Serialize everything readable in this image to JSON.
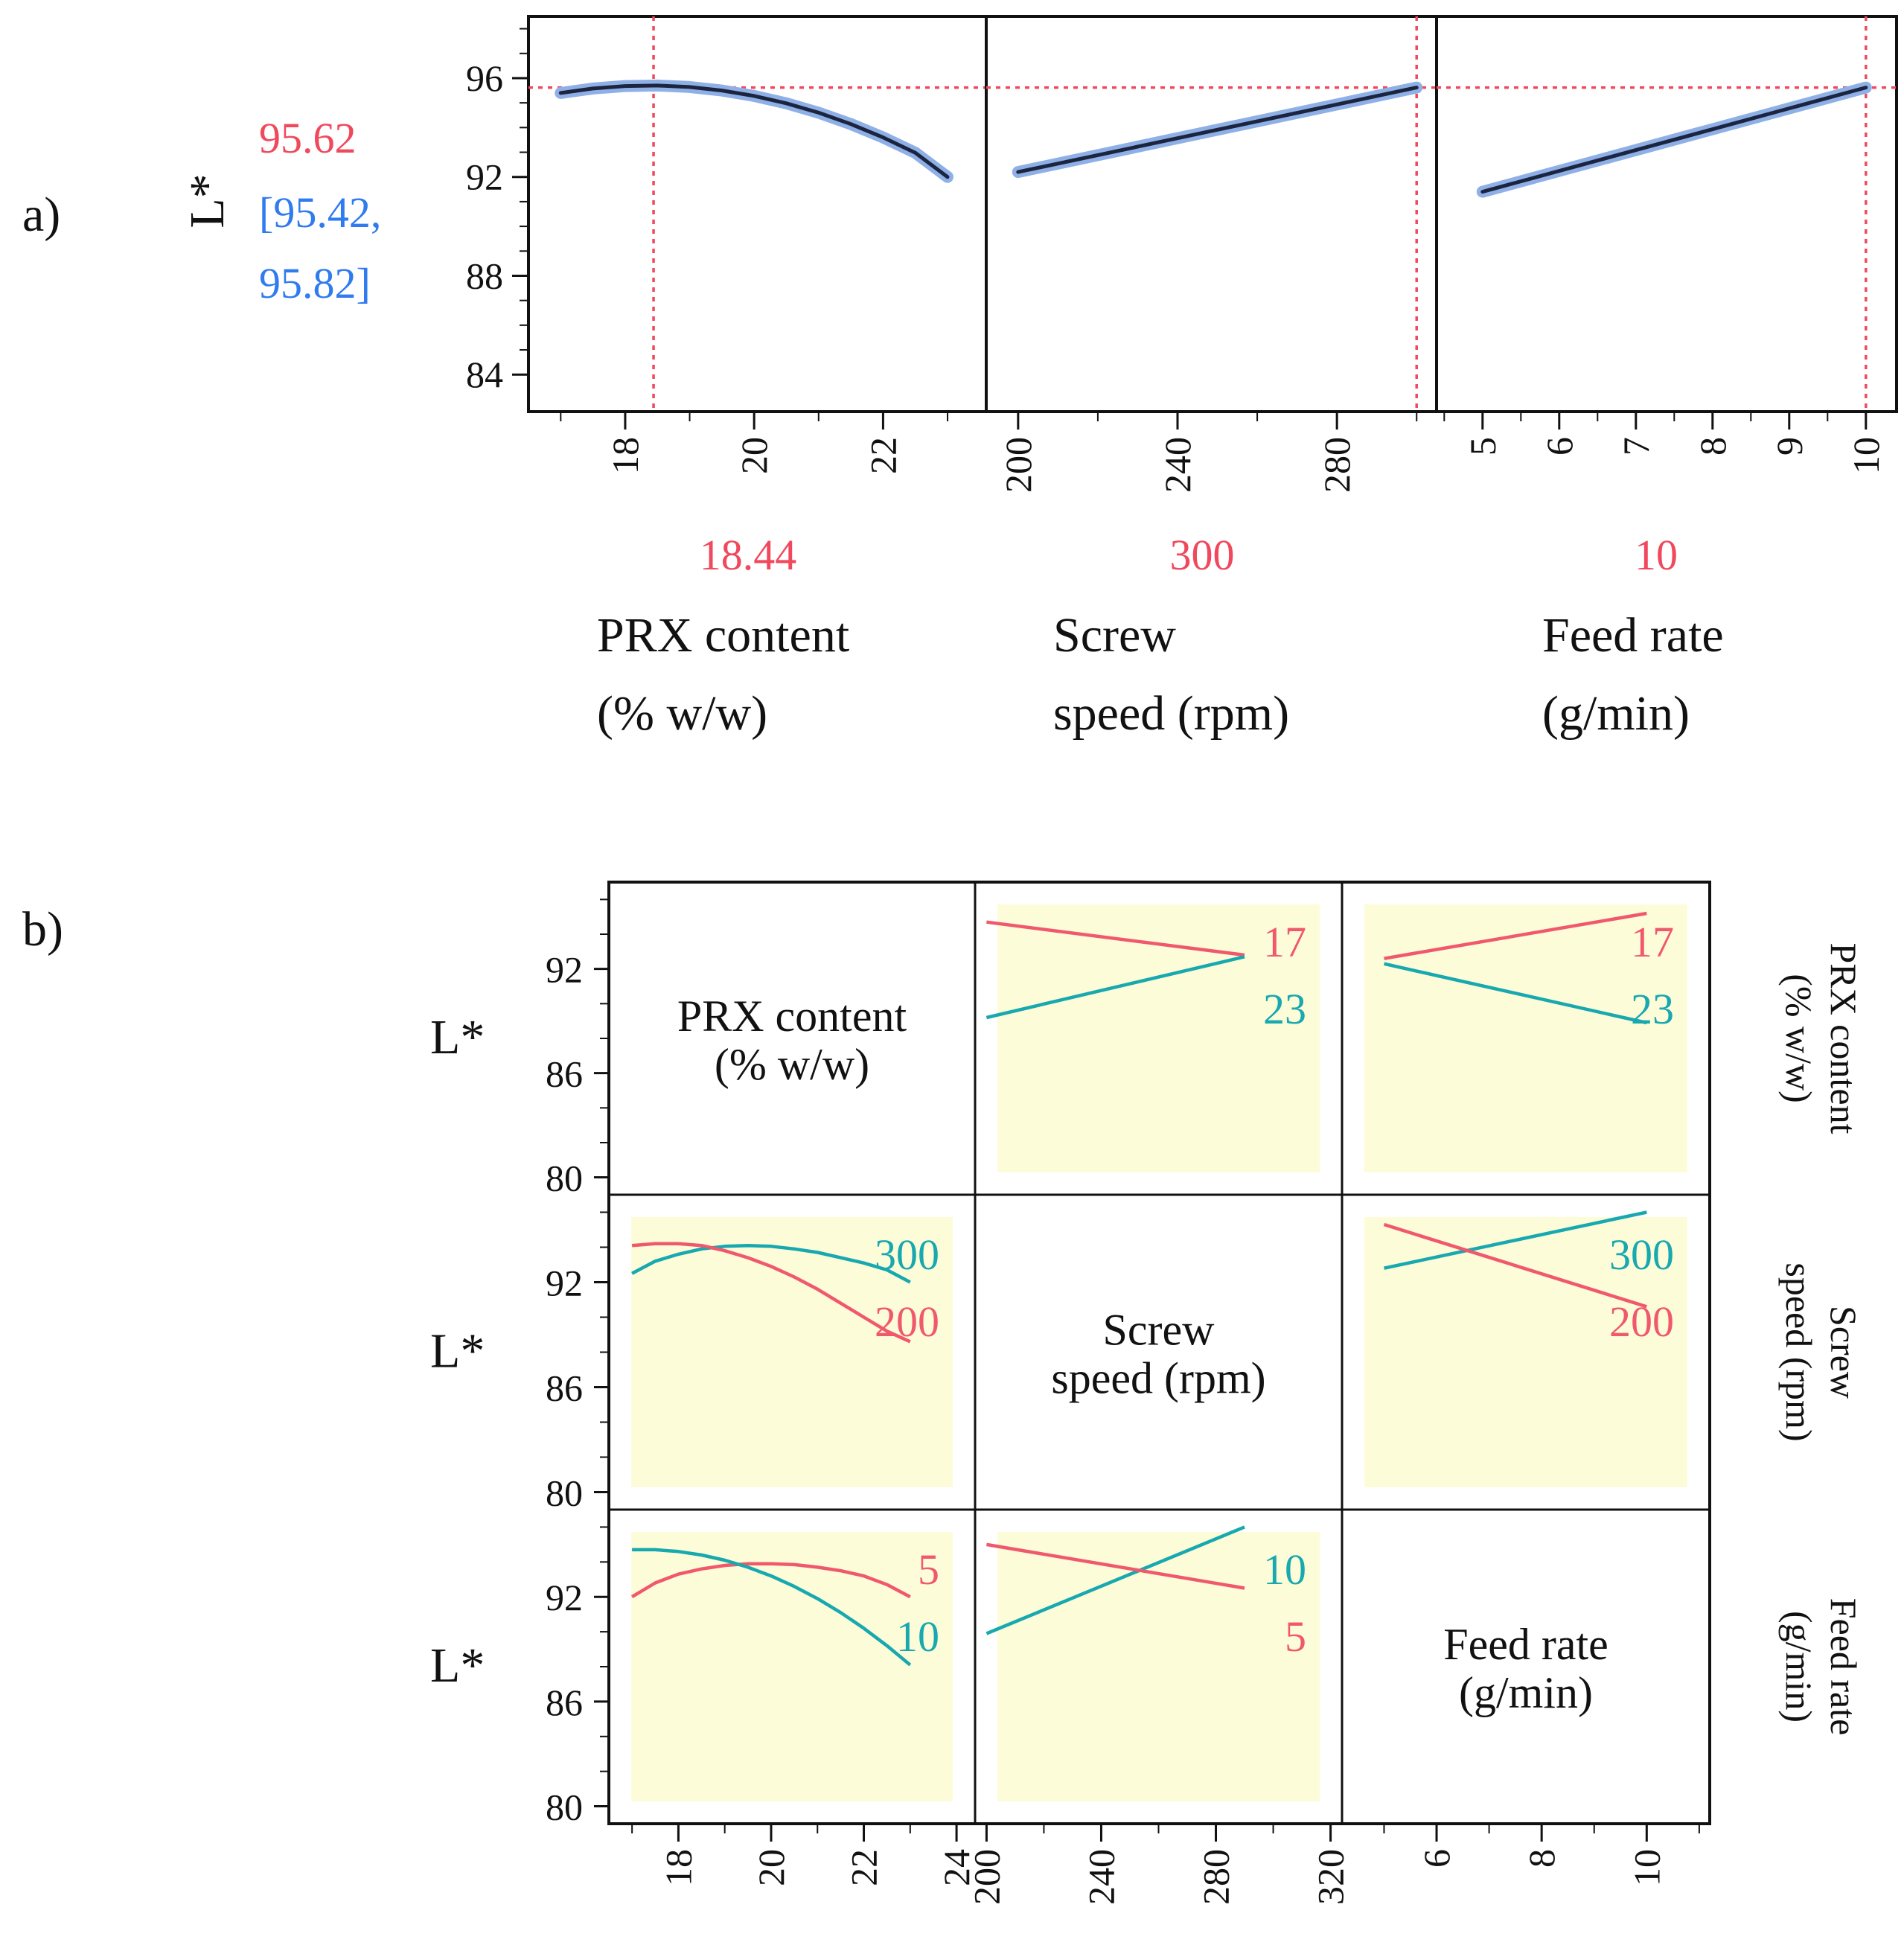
{
  "chart_data": [
    {
      "panel_label": "a)",
      "type": "line",
      "response": {
        "ylabel": "L*",
        "predicted": "95.62",
        "ci": "[95.42, 95.82]",
        "ci_line1": "[95.42,",
        "ci_line2": "95.82]",
        "y_value": 95.62,
        "ylim": [
          82.5,
          98.5
        ],
        "yticks": [
          84,
          88,
          92,
          96
        ]
      },
      "line_color": "#1c2540",
      "ci_band_color": "#8fb0e6",
      "ref_line_color": "#f0495d",
      "factors": [
        {
          "name": "PRX content (% w/w)",
          "label_line1": "PRX content",
          "label_line2": "(% w/w)",
          "current_label": "18.44",
          "current": 18.44,
          "xlim": [
            16.5,
            23.6
          ],
          "xticks": [
            18,
            20,
            22
          ],
          "x": [
            17,
            17.5,
            18,
            18.5,
            19,
            19.5,
            20,
            20.5,
            21,
            21.5,
            22,
            22.5,
            23
          ],
          "y": [
            95.4,
            95.58,
            95.68,
            95.7,
            95.64,
            95.5,
            95.28,
            94.98,
            94.6,
            94.14,
            93.6,
            92.98,
            92.0
          ]
        },
        {
          "name": "Screw speed (rpm)",
          "label_line1": "Screw",
          "label_line2": "speed (rpm)",
          "current_label": "300",
          "current": 300,
          "xlim": [
            192,
            305
          ],
          "xticks": [
            200,
            240,
            280
          ],
          "x": [
            200,
            300
          ],
          "y": [
            92.2,
            95.62
          ]
        },
        {
          "name": "Feed rate (g/min)",
          "label_line1": "Feed rate",
          "label_line2": "(g/min)",
          "current_label": "10",
          "current": 10,
          "xlim": [
            4.4,
            10.4
          ],
          "xticks": [
            5,
            6,
            7,
            8,
            9,
            10
          ],
          "x": [
            5,
            10
          ],
          "y": [
            91.4,
            95.62
          ]
        }
      ]
    },
    {
      "panel_label": "b)",
      "type": "line",
      "ylabel": "L*",
      "ylim": [
        79,
        97
      ],
      "yticks": [
        80,
        86,
        92
      ],
      "low_color": "#f0596d",
      "high_color": "#17a8b0",
      "panel_bg": "#fdfcd8",
      "factors": [
        {
          "name": "PRX content (% w/w)",
          "diag_line1": "PRX content",
          "diag_line2": "(% w/w)",
          "xlim": [
            16.5,
            24.4
          ],
          "xticks": [
            18,
            20,
            22,
            24
          ]
        },
        {
          "name": "Screw speed (rpm)",
          "diag_line1": "Screw",
          "diag_line2": "speed (rpm)",
          "xlim": [
            196,
            324
          ],
          "xticks": [
            200,
            240,
            280,
            320
          ]
        },
        {
          "name": "Feed rate (g/min)",
          "diag_line1": "Feed rate",
          "diag_line2": "(g/min)",
          "xlim": [
            4.2,
            11.2
          ],
          "xticks": [
            6,
            8,
            10
          ]
        }
      ],
      "interactions": [
        {
          "row": 0,
          "col": 1,
          "series": [
            {
              "name": "17",
              "x": [
                200,
                290
              ],
              "y": [
                94.7,
                92.8
              ]
            },
            {
              "name": "23",
              "x": [
                200,
                290
              ],
              "y": [
                89.2,
                92.7
              ]
            }
          ]
        },
        {
          "row": 0,
          "col": 2,
          "series": [
            {
              "name": "17",
              "x": [
                5,
                10
              ],
              "y": [
                92.6,
                95.2
              ]
            },
            {
              "name": "23",
              "x": [
                5,
                10
              ],
              "y": [
                92.3,
                88.9
              ]
            }
          ]
        },
        {
          "row": 1,
          "col": 0,
          "series": [
            {
              "name": "300",
              "x": [
                17,
                17.5,
                18,
                18.5,
                19,
                19.5,
                20,
                20.5,
                21,
                21.5,
                22,
                22.5,
                23
              ],
              "y": [
                92.5,
                93.2,
                93.6,
                93.9,
                94.05,
                94.1,
                94.05,
                93.9,
                93.7,
                93.4,
                93.1,
                92.7,
                92.0
              ]
            },
            {
              "name": "200",
              "x": [
                17,
                17.5,
                18,
                18.5,
                19,
                19.5,
                20,
                20.5,
                21,
                21.5,
                22,
                22.5,
                23
              ],
              "y": [
                94.1,
                94.2,
                94.2,
                94.1,
                93.8,
                93.4,
                92.9,
                92.3,
                91.6,
                90.8,
                90.0,
                89.2,
                88.6
              ]
            }
          ]
        },
        {
          "row": 1,
          "col": 2,
          "series": [
            {
              "name": "300",
              "x": [
                5,
                10
              ],
              "y": [
                92.8,
                96.0
              ]
            },
            {
              "name": "200",
              "x": [
                5,
                10
              ],
              "y": [
                95.3,
                90.6
              ]
            }
          ]
        },
        {
          "row": 2,
          "col": 0,
          "series": [
            {
              "name": "5",
              "x": [
                17,
                17.5,
                18,
                18.5,
                19,
                19.5,
                20,
                20.5,
                21,
                21.5,
                22,
                22.5,
                23
              ],
              "y": [
                92.0,
                92.8,
                93.3,
                93.6,
                93.8,
                93.9,
                93.9,
                93.85,
                93.7,
                93.5,
                93.2,
                92.7,
                92.0
              ]
            },
            {
              "name": "10",
              "x": [
                17,
                17.5,
                18,
                18.5,
                19,
                19.5,
                20,
                20.5,
                21,
                21.5,
                22,
                22.5,
                23
              ],
              "y": [
                94.7,
                94.7,
                94.6,
                94.4,
                94.1,
                93.7,
                93.2,
                92.6,
                91.9,
                91.1,
                90.2,
                89.2,
                88.1
              ]
            }
          ]
        },
        {
          "row": 2,
          "col": 1,
          "series": [
            {
              "name": "10",
              "x": [
                200,
                290
              ],
              "y": [
                89.9,
                96.0
              ]
            },
            {
              "name": "5",
              "x": [
                200,
                290
              ],
              "y": [
                95.0,
                92.5
              ]
            }
          ]
        }
      ]
    }
  ]
}
